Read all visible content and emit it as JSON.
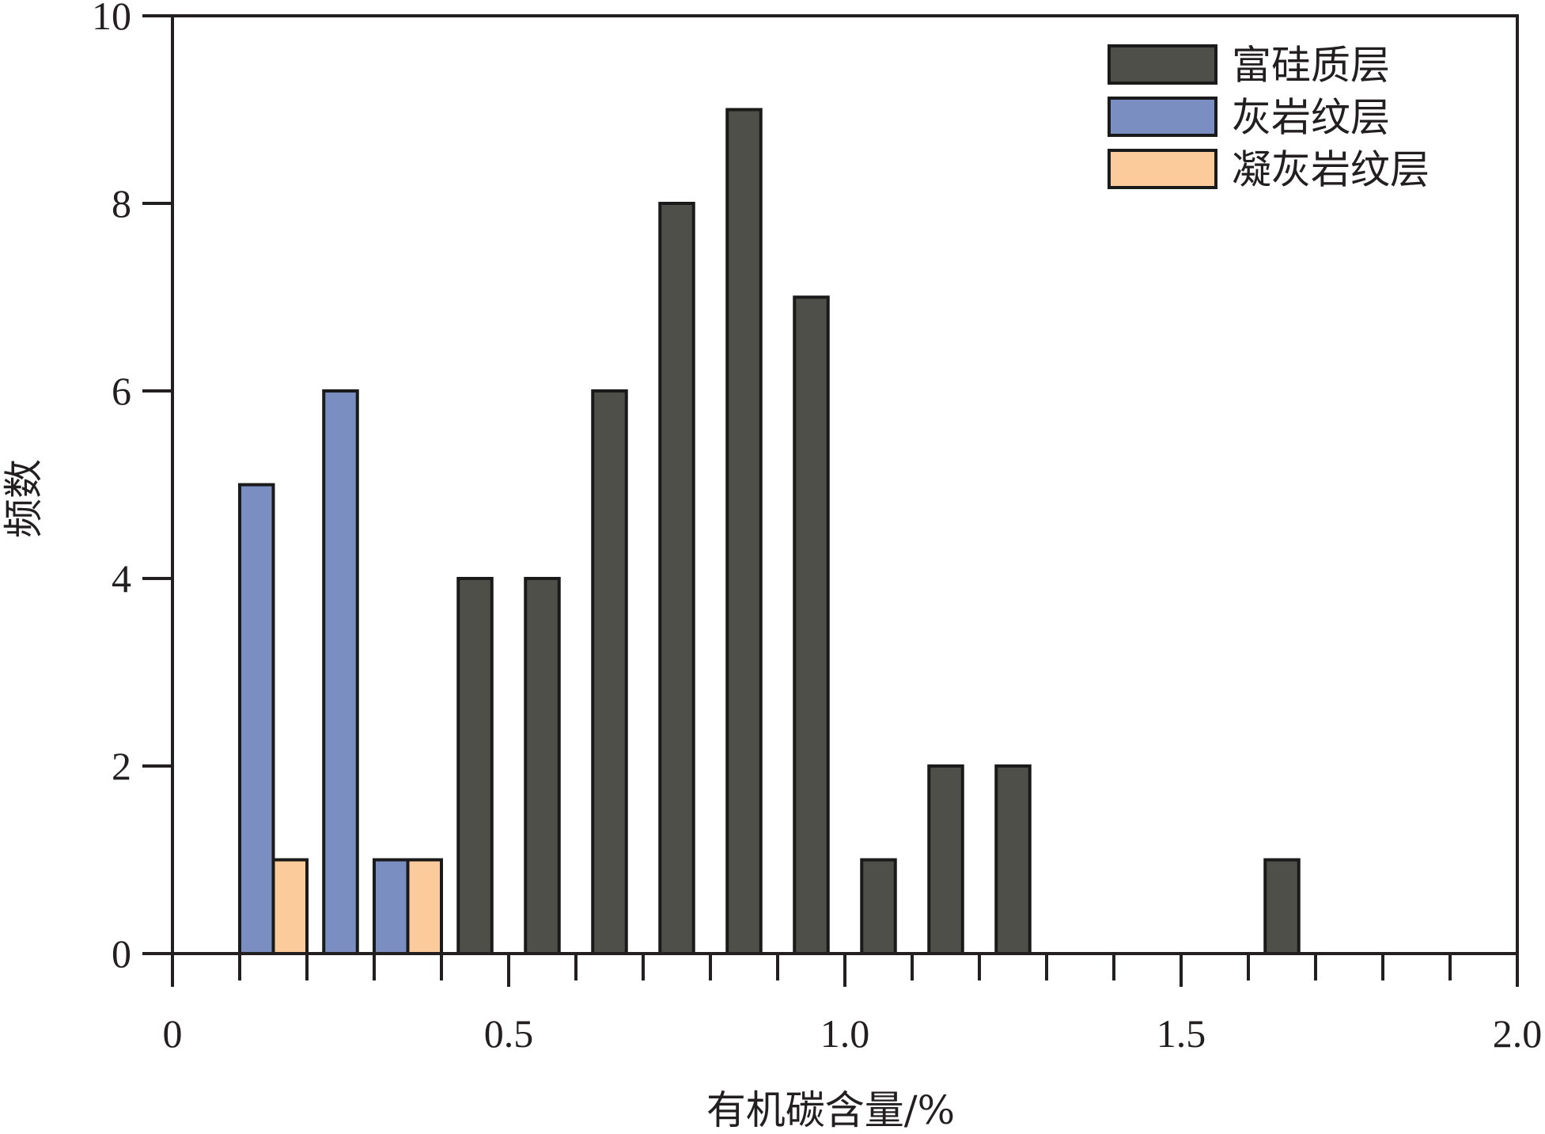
{
  "chart_data": {
    "type": "bar",
    "title": "",
    "xlabel": "有机碳含量/%",
    "ylabel": "频数",
    "xlim": [
      0,
      2.0
    ],
    "ylim": [
      0,
      10
    ],
    "x_ticks": [
      "0",
      "0.5",
      "1.0",
      "1.5",
      "2.0"
    ],
    "x_tick_values": [
      0,
      0.5,
      1.0,
      1.5,
      2.0
    ],
    "y_ticks": [
      "0",
      "2",
      "4",
      "6",
      "8",
      "10"
    ],
    "y_tick_values": [
      0,
      2,
      4,
      6,
      8,
      10
    ],
    "bin_width": 0.1,
    "grid": false,
    "legend_position": "top-right",
    "series": [
      {
        "name": "富硅质层",
        "color": "#4d4f48",
        "points": [
          {
            "x": 0.45,
            "y": 4
          },
          {
            "x": 0.55,
            "y": 4
          },
          {
            "x": 0.65,
            "y": 6
          },
          {
            "x": 0.75,
            "y": 8
          },
          {
            "x": 0.85,
            "y": 9
          },
          {
            "x": 0.95,
            "y": 7
          },
          {
            "x": 1.05,
            "y": 1
          },
          {
            "x": 1.15,
            "y": 2
          },
          {
            "x": 1.25,
            "y": 2
          },
          {
            "x": 1.65,
            "y": 1
          }
        ]
      },
      {
        "name": "灰岩纹层",
        "color": "#7a8ec2",
        "points": [
          {
            "x": 0.15,
            "y": 5
          },
          {
            "x": 0.25,
            "y": 6
          },
          {
            "x": 0.35,
            "y": 1
          }
        ]
      },
      {
        "name": "凝灰岩纹层",
        "color": "#fccb9b",
        "points": [
          {
            "x": 0.15,
            "y": 1
          },
          {
            "x": 0.35,
            "y": 1
          }
        ]
      }
    ]
  }
}
